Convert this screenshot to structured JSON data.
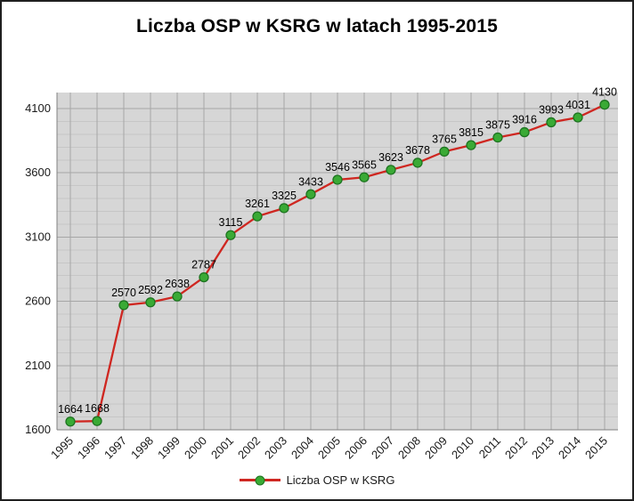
{
  "title": "Liczba OSP w KSRG w latach 1995-2015",
  "legend": {
    "label": "Liczba OSP w KSRG"
  },
  "chart_data": {
    "type": "line",
    "title": "Liczba OSP w KSRG w latach 1995-2015",
    "categories": [
      "1995",
      "1996",
      "1997",
      "1998",
      "1999",
      "2000",
      "2001",
      "2002",
      "2003",
      "2004",
      "2005",
      "2006",
      "2007",
      "2008",
      "2009",
      "2010",
      "2011",
      "2012",
      "2013",
      "2014",
      "2015"
    ],
    "series": [
      {
        "name": "Liczba OSP w KSRG",
        "values": [
          1664,
          1668,
          2570,
          2592,
          2638,
          2787,
          3115,
          3261,
          3325,
          3433,
          3546,
          3565,
          3623,
          3678,
          3765,
          3815,
          3875,
          3916,
          3993,
          4031,
          4130
        ]
      }
    ],
    "xlabel": "",
    "ylabel": "",
    "ylim": [
      1600,
      4100
    ],
    "yticks": [
      1600,
      2100,
      2600,
      3100,
      3600,
      4100
    ],
    "y_minor_unit": 100,
    "grid": true,
    "data_labels": true,
    "legend_position": "bottom",
    "colors": {
      "line": "#cf2721",
      "marker_fill": "#3aaa35",
      "marker_stroke": "#1d7420",
      "plot_bg": "#d6d6d6",
      "grid_major": "#a6a6a6",
      "grid_minor": "#c6c6c6",
      "axis": "#808080",
      "text": "#1a1a1a"
    }
  }
}
